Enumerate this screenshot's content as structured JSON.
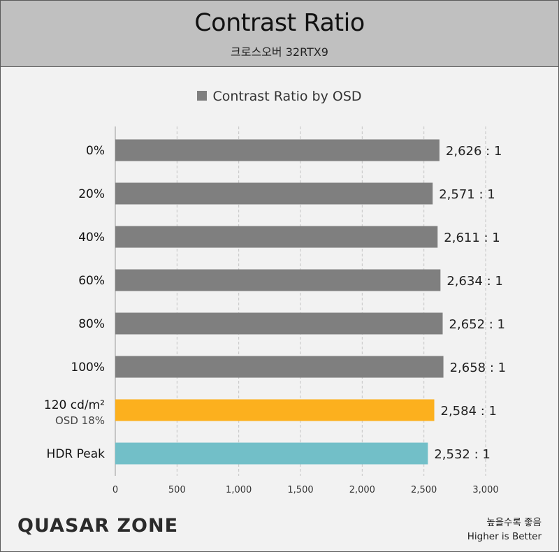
{
  "header": {
    "title": "Contrast Ratio",
    "subtitle": "크로스오버 32RTX9"
  },
  "legend": {
    "label": "Contrast Ratio by OSD",
    "color": "#7f7f7f"
  },
  "chart_data": {
    "type": "bar",
    "orientation": "horizontal",
    "title": "Contrast Ratio",
    "subtitle": "크로스오버 32RTX9",
    "categories": [
      "0%",
      "20%",
      "40%",
      "60%",
      "80%",
      "100%",
      "120 cd/m²",
      "HDR Peak"
    ],
    "category_sublabels": [
      "",
      "",
      "",
      "",
      "",
      "",
      "OSD 18%",
      ""
    ],
    "values": [
      2626,
      2571,
      2611,
      2634,
      2652,
      2658,
      2584,
      2532
    ],
    "value_labels": [
      "2,626 : 1",
      "2,571 : 1",
      "2,611 : 1",
      "2,634 : 1",
      "2,652 : 1",
      "2,658 : 1",
      "2,584 : 1",
      "2,532 : 1"
    ],
    "bar_colors": [
      "#7f7f7f",
      "#7f7f7f",
      "#7f7f7f",
      "#7f7f7f",
      "#7f7f7f",
      "#7f7f7f",
      "#fcb01e",
      "#72bfc8"
    ],
    "series": [
      {
        "name": "Contrast Ratio by OSD",
        "values": [
          2626,
          2571,
          2611,
          2634,
          2652,
          2658,
          2584,
          2532
        ]
      }
    ],
    "xlim": [
      0,
      3000
    ],
    "xticks": [
      0,
      500,
      1000,
      1500,
      2000,
      2500,
      3000
    ],
    "xtick_labels": [
      "0",
      "500",
      "1,000",
      "1,500",
      "2,000",
      "2,500",
      "3,000"
    ],
    "grid": "vertical dashed",
    "legend_position": "top"
  },
  "footer": {
    "logo": "QUASAR ZONE",
    "note_ko": "높을수록 좋음",
    "note_en": "Higher is Better"
  }
}
